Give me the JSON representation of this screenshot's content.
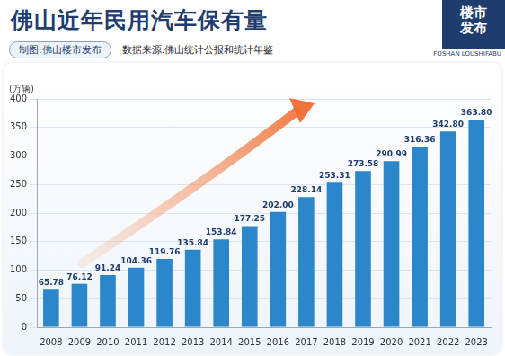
{
  "chart_data": {
    "type": "bar",
    "title": "佛山近年民用汽车保有量",
    "annotations": [
      "制图:佛山楼市发布",
      "数据来源:佛山统计公报和统计年鉴",
      "楼市发布",
      "FOSHAN LOUSHIFABU"
    ],
    "y_label": "(万辆)",
    "categories": [
      "2008",
      "2009",
      "2010",
      "2011",
      "2012",
      "2013",
      "2014",
      "2015",
      "2016",
      "2017",
      "2018",
      "2019",
      "2020",
      "2021",
      "2022",
      "2023"
    ],
    "values": [
      65.78,
      76.12,
      91.24,
      104.36,
      119.76,
      135.84,
      153.84,
      177.25,
      202.0,
      228.14,
      253.31,
      273.58,
      290.99,
      316.36,
      342.8,
      363.8
    ],
    "value_labels": [
      "65.78",
      "76.12",
      "91.24",
      "104.36",
      "119.76",
      "135.84",
      "153.84",
      "177.25",
      "202.00",
      "228.14",
      "253.31",
      "273.58",
      "290.99",
      "316.36",
      "342.80",
      "363.80"
    ],
    "color": "#2b87c9",
    "ylim": [
      0,
      400
    ],
    "yticks": [
      0,
      50,
      100,
      150,
      200,
      250,
      300,
      350,
      400
    ],
    "grid": true,
    "data_labels": true
  }
}
